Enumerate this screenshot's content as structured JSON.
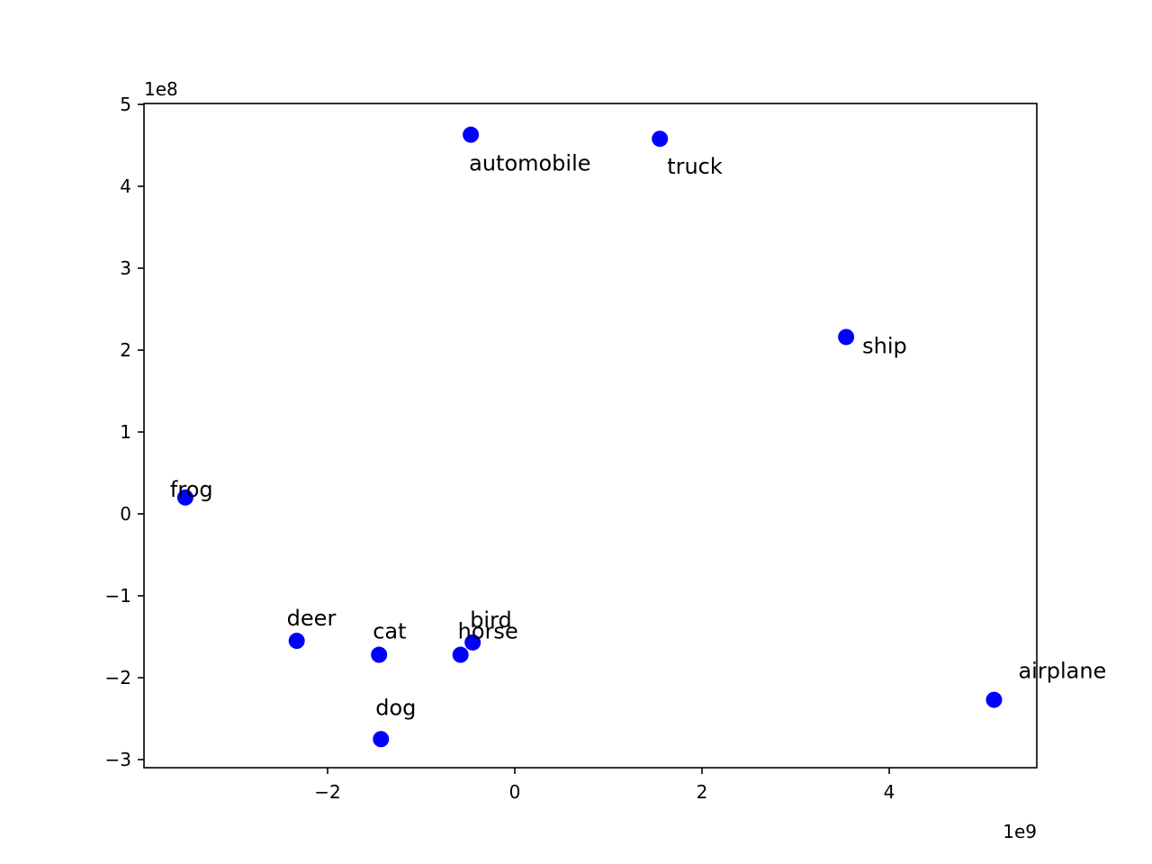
{
  "chart_data": {
    "type": "scatter",
    "title": "",
    "xlabel": "",
    "ylabel": "",
    "xlim": [
      -3950000000.0,
      5580000000.0
    ],
    "ylim": [
      -310000000.0,
      500000000.0
    ],
    "x_multiplier": "1e9",
    "y_multiplier": "1e8",
    "x_ticks": [
      {
        "value": -2000000000.0,
        "label": "−2"
      },
      {
        "value": 0,
        "label": "0"
      },
      {
        "value": 2000000000.0,
        "label": "2"
      },
      {
        "value": 4000000000.0,
        "label": "4"
      }
    ],
    "y_ticks": [
      {
        "value": -300000000.0,
        "label": "−3"
      },
      {
        "value": -200000000.0,
        "label": "−2"
      },
      {
        "value": -100000000.0,
        "label": "−1"
      },
      {
        "value": 0,
        "label": "0"
      },
      {
        "value": 100000000.0,
        "label": "1"
      },
      {
        "value": 200000000.0,
        "label": "2"
      },
      {
        "value": 300000000.0,
        "label": "3"
      },
      {
        "value": 400000000.0,
        "label": "4"
      },
      {
        "value": 500000000.0,
        "label": "5"
      }
    ],
    "grid": false,
    "marker_color": "#0000ff",
    "points": [
      {
        "label": "automobile",
        "x": -470000000.0,
        "y": 463000000.0
      },
      {
        "label": "truck",
        "x": 1550000000.0,
        "y": 458000000.0
      },
      {
        "label": "ship",
        "x": 3540000000.0,
        "y": 216000000.0
      },
      {
        "label": "frog",
        "x": -3520000000.0,
        "y": 20000000.0
      },
      {
        "label": "deer",
        "x": -2330000000.0,
        "y": -155000000.0
      },
      {
        "label": "cat",
        "x": -1450000000.0,
        "y": -172000000.0
      },
      {
        "label": "bird",
        "x": -450000000.0,
        "y": -157000000.0
      },
      {
        "label": "horse",
        "x": -580000000.0,
        "y": -172000000.0
      },
      {
        "label": "dog",
        "x": -1430000000.0,
        "y": -275000000.0
      },
      {
        "label": "airplane",
        "x": 5120000000.0,
        "y": -227000000.0
      }
    ]
  }
}
